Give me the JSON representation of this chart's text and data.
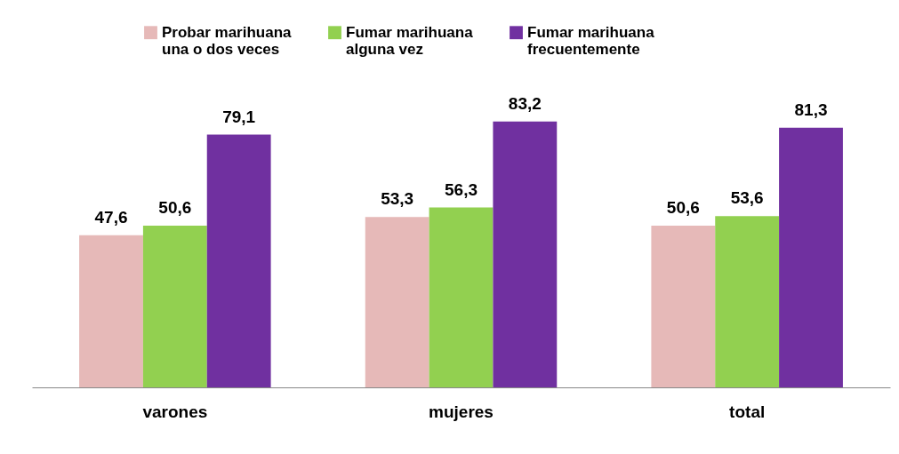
{
  "chart_data": {
    "type": "bar",
    "categories": [
      "varones",
      "mujeres",
      "total"
    ],
    "series": [
      {
        "name": "Probar marihuana una o dos veces",
        "color": "#e6b9b8",
        "values": [
          47.6,
          53.3,
          50.6
        ],
        "value_labels": [
          "47,6",
          "53,3",
          "50,6"
        ]
      },
      {
        "name": "Fumar marihuana alguna vez",
        "color": "#92d050",
        "values": [
          50.6,
          56.3,
          53.6
        ],
        "value_labels": [
          "50,6",
          "56,3",
          "53,6"
        ]
      },
      {
        "name": "Fumar marihuana frecuentemente",
        "color": "#7030a0",
        "values": [
          79.1,
          83.2,
          81.3
        ],
        "value_labels": [
          "79,1",
          "83,2",
          "81,3"
        ]
      }
    ],
    "legend": "top",
    "grid": false
  }
}
